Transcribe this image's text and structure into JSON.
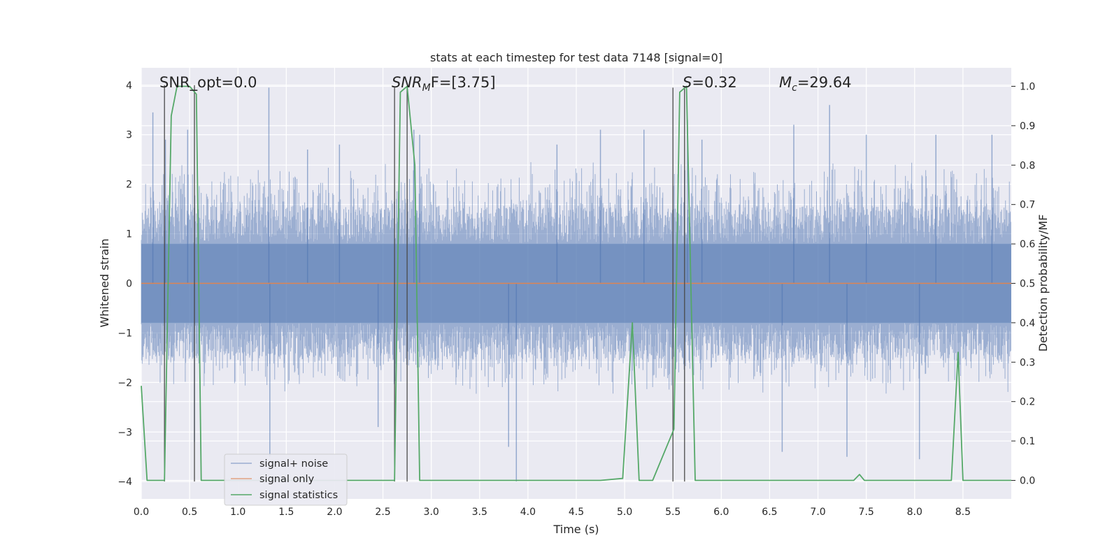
{
  "chart_data": {
    "type": "line",
    "title": "stats at each timestep for test data 7148 [signal=0]",
    "xlabel": "Time (s)",
    "ylabel": "Whitened strain",
    "ylabel_right": "Detection probability/MF",
    "xlim": [
      0,
      9.0
    ],
    "ylim": [
      -4.35,
      4.35
    ],
    "ylim_right": [
      -0.047,
      1.047
    ],
    "grid": true,
    "x_ticks": [
      "0.0",
      "0.5",
      "1.0",
      "1.5",
      "2.0",
      "2.5",
      "3.0",
      "3.5",
      "4.0",
      "4.5",
      "5.0",
      "5.5",
      "6.0",
      "6.5",
      "7.0",
      "7.5",
      "8.0",
      "8.5"
    ],
    "y_ticks": [
      "4",
      "3",
      "2",
      "1",
      "0",
      "−1",
      "−2",
      "−3",
      "−4"
    ],
    "y_ticks_right": [
      "1.0",
      "0.9",
      "0.8",
      "0.7",
      "0.6",
      "0.5",
      "0.4",
      "0.3",
      "0.2",
      "0.1",
      "0.0"
    ],
    "annotations": [
      {
        "id": "snr-opt",
        "text": "SNR_opt=0.0",
        "x": 0.2
      },
      {
        "id": "snr-mf",
        "base": "SNR",
        "sub": "M",
        "rest": "F=[3.75]",
        "x": 2.6
      },
      {
        "id": "s-stat",
        "base": "S",
        "rest": "=0.32",
        "x": 5.6
      },
      {
        "id": "mc",
        "base": "M",
        "sub": "c",
        "rest": "=29.64",
        "x": 6.6
      }
    ],
    "legend": {
      "placement": "lower-left",
      "entries": [
        {
          "label": "signal+ noise",
          "color": "#4C72B0"
        },
        {
          "label": "signal only",
          "color": "#DD8452"
        },
        {
          "label": "signal statistics",
          "color": "#55A868"
        }
      ]
    },
    "series": [
      {
        "name": "signal+ noise",
        "color": "#4C72B0",
        "kind": "noise",
        "envelope_typical": 1.55,
        "envelope_core": 0.8,
        "spikes": [
          {
            "x": 0.12,
            "y": 3.45
          },
          {
            "x": 0.25,
            "y": 2.9
          },
          {
            "x": 0.48,
            "y": 3.1
          },
          {
            "x": 0.55,
            "y": -3.2
          },
          {
            "x": 1.32,
            "y": 3.95
          },
          {
            "x": 1.33,
            "y": -3.5
          },
          {
            "x": 1.72,
            "y": 2.7
          },
          {
            "x": 2.05,
            "y": 2.8
          },
          {
            "x": 2.45,
            "y": -2.9
          },
          {
            "x": 2.82,
            "y": 3.1
          },
          {
            "x": 2.88,
            "y": 3.0
          },
          {
            "x": 3.8,
            "y": -3.3
          },
          {
            "x": 3.88,
            "y": -4.0
          },
          {
            "x": 4.3,
            "y": 2.8
          },
          {
            "x": 4.75,
            "y": 3.1
          },
          {
            "x": 5.2,
            "y": 3.1
          },
          {
            "x": 5.65,
            "y": 3.3
          },
          {
            "x": 5.8,
            "y": 2.9
          },
          {
            "x": 6.63,
            "y": -3.4
          },
          {
            "x": 6.75,
            "y": 3.2
          },
          {
            "x": 7.12,
            "y": 3.6
          },
          {
            "x": 7.3,
            "y": -3.5
          },
          {
            "x": 7.5,
            "y": 3.0
          },
          {
            "x": 8.05,
            "y": -3.55
          },
          {
            "x": 8.22,
            "y": 3.0
          },
          {
            "x": 8.8,
            "y": 3.0
          }
        ]
      },
      {
        "name": "signal only",
        "color": "#DD8452",
        "x": [
          0,
          9.0
        ],
        "y": [
          0,
          0
        ]
      },
      {
        "name": "signal statistics",
        "color": "#55A868",
        "x": [
          0,
          0.06,
          0.24,
          0.31,
          0.37,
          0.5,
          0.57,
          0.62,
          0.95,
          2.5,
          2.62,
          2.68,
          2.75,
          2.83,
          2.88,
          2.95,
          4.1,
          4.75,
          4.98,
          5.08,
          5.15,
          5.29,
          5.51,
          5.57,
          5.64,
          5.73,
          7.37,
          7.43,
          7.48,
          8.38,
          8.45,
          8.5,
          9.0
        ],
        "y": [
          0.24,
          0.0,
          0.0,
          0.925,
          1.0,
          1.0,
          0.98,
          0.0,
          0.0,
          0.0,
          0.0,
          0.985,
          1.0,
          0.8,
          0.0,
          0.0,
          0.0,
          0.0,
          0.005,
          0.4,
          0.0,
          0.0,
          0.13,
          0.985,
          1.0,
          0.0,
          0.0,
          0.015,
          0.0,
          0.0,
          0.325,
          0.0,
          0.0
        ]
      }
    ],
    "vlines": [
      {
        "x": 0.24,
        "y0": -4.0,
        "y1": 4.0
      },
      {
        "x": 0.55,
        "y0": -4.0,
        "y1": 4.0
      },
      {
        "x": 2.62,
        "y0": -4.0,
        "y1": 3.95
      },
      {
        "x": 2.75,
        "y0": -4.0,
        "y1": 3.95
      },
      {
        "x": 5.5,
        "y0": -4.0,
        "y1": 3.95
      },
      {
        "x": 5.62,
        "y0": -4.0,
        "y1": 3.95
      }
    ]
  }
}
